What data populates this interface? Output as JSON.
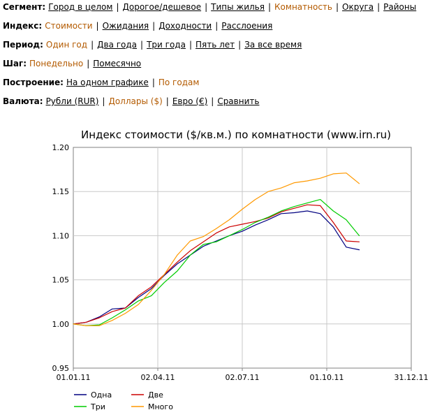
{
  "filters": [
    {
      "label": "Сегмент:",
      "options": [
        {
          "text": "Город в целом",
          "active": false
        },
        {
          "text": "Дорогое/дешевое",
          "active": false
        },
        {
          "text": "Типы жилья",
          "active": false
        },
        {
          "text": "Комнатность",
          "active": true
        },
        {
          "text": "Округа",
          "active": false
        },
        {
          "text": "Районы",
          "active": false
        }
      ]
    },
    {
      "label": "Индекс:",
      "options": [
        {
          "text": "Стоимости",
          "active": true
        },
        {
          "text": "Ожидания",
          "active": false
        },
        {
          "text": "Доходности",
          "active": false
        },
        {
          "text": "Расслоения",
          "active": false
        }
      ]
    },
    {
      "label": "Период:",
      "options": [
        {
          "text": "Один год",
          "active": true
        },
        {
          "text": "Два года",
          "active": false
        },
        {
          "text": "Три года",
          "active": false
        },
        {
          "text": "Пять лет",
          "active": false
        },
        {
          "text": "За все время",
          "active": false
        }
      ]
    },
    {
      "label": "Шаг:",
      "options": [
        {
          "text": "Понедельно",
          "active": true
        },
        {
          "text": "Помесячно",
          "active": false
        }
      ]
    },
    {
      "label": "Построение:",
      "options": [
        {
          "text": "На одном графике",
          "active": false
        },
        {
          "text": "По годам",
          "active": true
        }
      ]
    },
    {
      "label": "Валюта:",
      "options": [
        {
          "text": "Рубли (RUR)",
          "active": false
        },
        {
          "text": "Доллары ($)",
          "active": true
        },
        {
          "text": "Евро (€)",
          "active": false
        },
        {
          "text": "Сравнить",
          "active": false
        }
      ]
    }
  ],
  "chart_data": {
    "type": "line",
    "title": "Индекс стоимости ($/кв.м.) по комнатности (www.irn.ru)",
    "xlabel": "",
    "ylabel": "",
    "xlim": [
      "2011-01-01",
      "2011-12-31"
    ],
    "ylim": [
      0.95,
      1.2
    ],
    "x_ticks": [
      "01.01.11",
      "02.04.11",
      "02.07.11",
      "01.10.11",
      "31.12.11"
    ],
    "x_tick_dates": [
      "2011-01-01",
      "2011-04-02",
      "2011-07-02",
      "2011-10-01",
      "2011-12-31"
    ],
    "y_ticks": [
      "0.95",
      "1.00",
      "1.05",
      "1.10",
      "1.15",
      "1.20"
    ],
    "y_tick_values": [
      0.95,
      1.0,
      1.05,
      1.1,
      1.15,
      1.2
    ],
    "grid": true,
    "legend_position": "bottom-left",
    "x": [
      "2011-01-01",
      "2011-01-15",
      "2011-01-29",
      "2011-02-12",
      "2011-02-26",
      "2011-03-12",
      "2011-03-26",
      "2011-04-09",
      "2011-04-23",
      "2011-05-07",
      "2011-05-21",
      "2011-06-04",
      "2011-06-18",
      "2011-07-02",
      "2011-07-16",
      "2011-07-30",
      "2011-08-13",
      "2011-08-27",
      "2011-09-10",
      "2011-09-24",
      "2011-10-08",
      "2011-10-22",
      "2011-11-05"
    ],
    "series": [
      {
        "name": "Одна",
        "color": "#000080",
        "values": [
          1.0,
          1.002,
          1.008,
          1.017,
          1.018,
          1.03,
          1.04,
          1.055,
          1.068,
          1.078,
          1.088,
          1.094,
          1.1,
          1.105,
          1.112,
          1.118,
          1.125,
          1.126,
          1.128,
          1.125,
          1.11,
          1.087,
          1.084
        ]
      },
      {
        "name": "Две",
        "color": "#cc0000",
        "values": [
          1.0,
          1.002,
          1.007,
          1.014,
          1.018,
          1.032,
          1.042,
          1.056,
          1.07,
          1.083,
          1.093,
          1.103,
          1.11,
          1.113,
          1.116,
          1.12,
          1.127,
          1.131,
          1.135,
          1.134,
          1.115,
          1.094,
          1.093
        ]
      },
      {
        "name": "Три",
        "color": "#00cc00",
        "values": [
          1.0,
          0.998,
          0.999,
          1.007,
          1.016,
          1.026,
          1.032,
          1.047,
          1.06,
          1.078,
          1.09,
          1.093,
          1.1,
          1.107,
          1.115,
          1.121,
          1.128,
          1.133,
          1.137,
          1.141,
          1.128,
          1.118,
          1.1
        ]
      },
      {
        "name": "Много",
        "color": "#ff9900",
        "values": [
          1.0,
          0.998,
          0.998,
          1.004,
          1.012,
          1.022,
          1.038,
          1.056,
          1.078,
          1.094,
          1.099,
          1.108,
          1.118,
          1.13,
          1.141,
          1.15,
          1.154,
          1.16,
          1.162,
          1.165,
          1.17,
          1.171,
          1.159
        ]
      }
    ]
  }
}
